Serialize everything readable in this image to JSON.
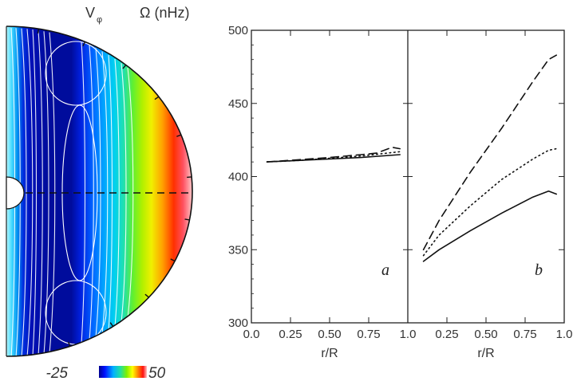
{
  "chart_data": [
    {
      "type": "heatmap",
      "title_left": "V",
      "title_left_sub": "φ",
      "title_right": "Ω (nHz)",
      "colorbar": {
        "min_label": "-25",
        "max_label": "50",
        "min": -25,
        "max": 50
      }
    },
    {
      "type": "line",
      "panel": "a",
      "xlabel": "r/R",
      "ylabel": "",
      "xlim": [
        0,
        1
      ],
      "ylim": [
        300,
        500
      ],
      "x_ticks": [
        "0.0",
        "0.25",
        "0.50",
        "0.75",
        "1.0"
      ],
      "x_tick_values": [
        0,
        0.25,
        0.5,
        0.75,
        1.0
      ],
      "y_ticks": [
        "300",
        "350",
        "400",
        "450",
        "500"
      ],
      "y_tick_values": [
        300,
        350,
        400,
        450,
        500
      ],
      "series": [
        {
          "style": "solid",
          "x": [
            0.1,
            0.3,
            0.5,
            0.7,
            0.95
          ],
          "y": [
            410,
            411,
            412,
            413,
            415
          ]
        },
        {
          "style": "dotted",
          "x": [
            0.1,
            0.3,
            0.5,
            0.7,
            0.95
          ],
          "y": [
            410,
            411,
            412.5,
            414,
            417
          ]
        },
        {
          "style": "dashed",
          "x": [
            0.1,
            0.3,
            0.5,
            0.7,
            0.8,
            0.9,
            0.95
          ],
          "y": [
            410,
            411.5,
            413,
            415,
            416,
            420,
            419
          ]
        }
      ]
    },
    {
      "type": "line",
      "panel": "b",
      "xlabel": "r/R",
      "ylabel": "",
      "xlim": [
        0,
        1
      ],
      "ylim": [
        300,
        500
      ],
      "x_ticks": [
        "0.25",
        "0.50",
        "0.75",
        "1.0"
      ],
      "x_tick_values": [
        0.25,
        0.5,
        0.75,
        1.0
      ],
      "series": [
        {
          "style": "solid",
          "x": [
            0.1,
            0.2,
            0.4,
            0.6,
            0.8,
            0.9,
            0.95
          ],
          "y": [
            342,
            350,
            363,
            375,
            386,
            390,
            388
          ]
        },
        {
          "style": "dotted",
          "x": [
            0.1,
            0.2,
            0.4,
            0.6,
            0.8,
            0.9,
            0.95
          ],
          "y": [
            346,
            360,
            380,
            398,
            412,
            418,
            419
          ]
        },
        {
          "style": "dashed",
          "x": [
            0.1,
            0.2,
            0.4,
            0.6,
            0.8,
            0.9,
            0.95
          ],
          "y": [
            350,
            370,
            403,
            433,
            465,
            480,
            483
          ]
        }
      ]
    }
  ]
}
